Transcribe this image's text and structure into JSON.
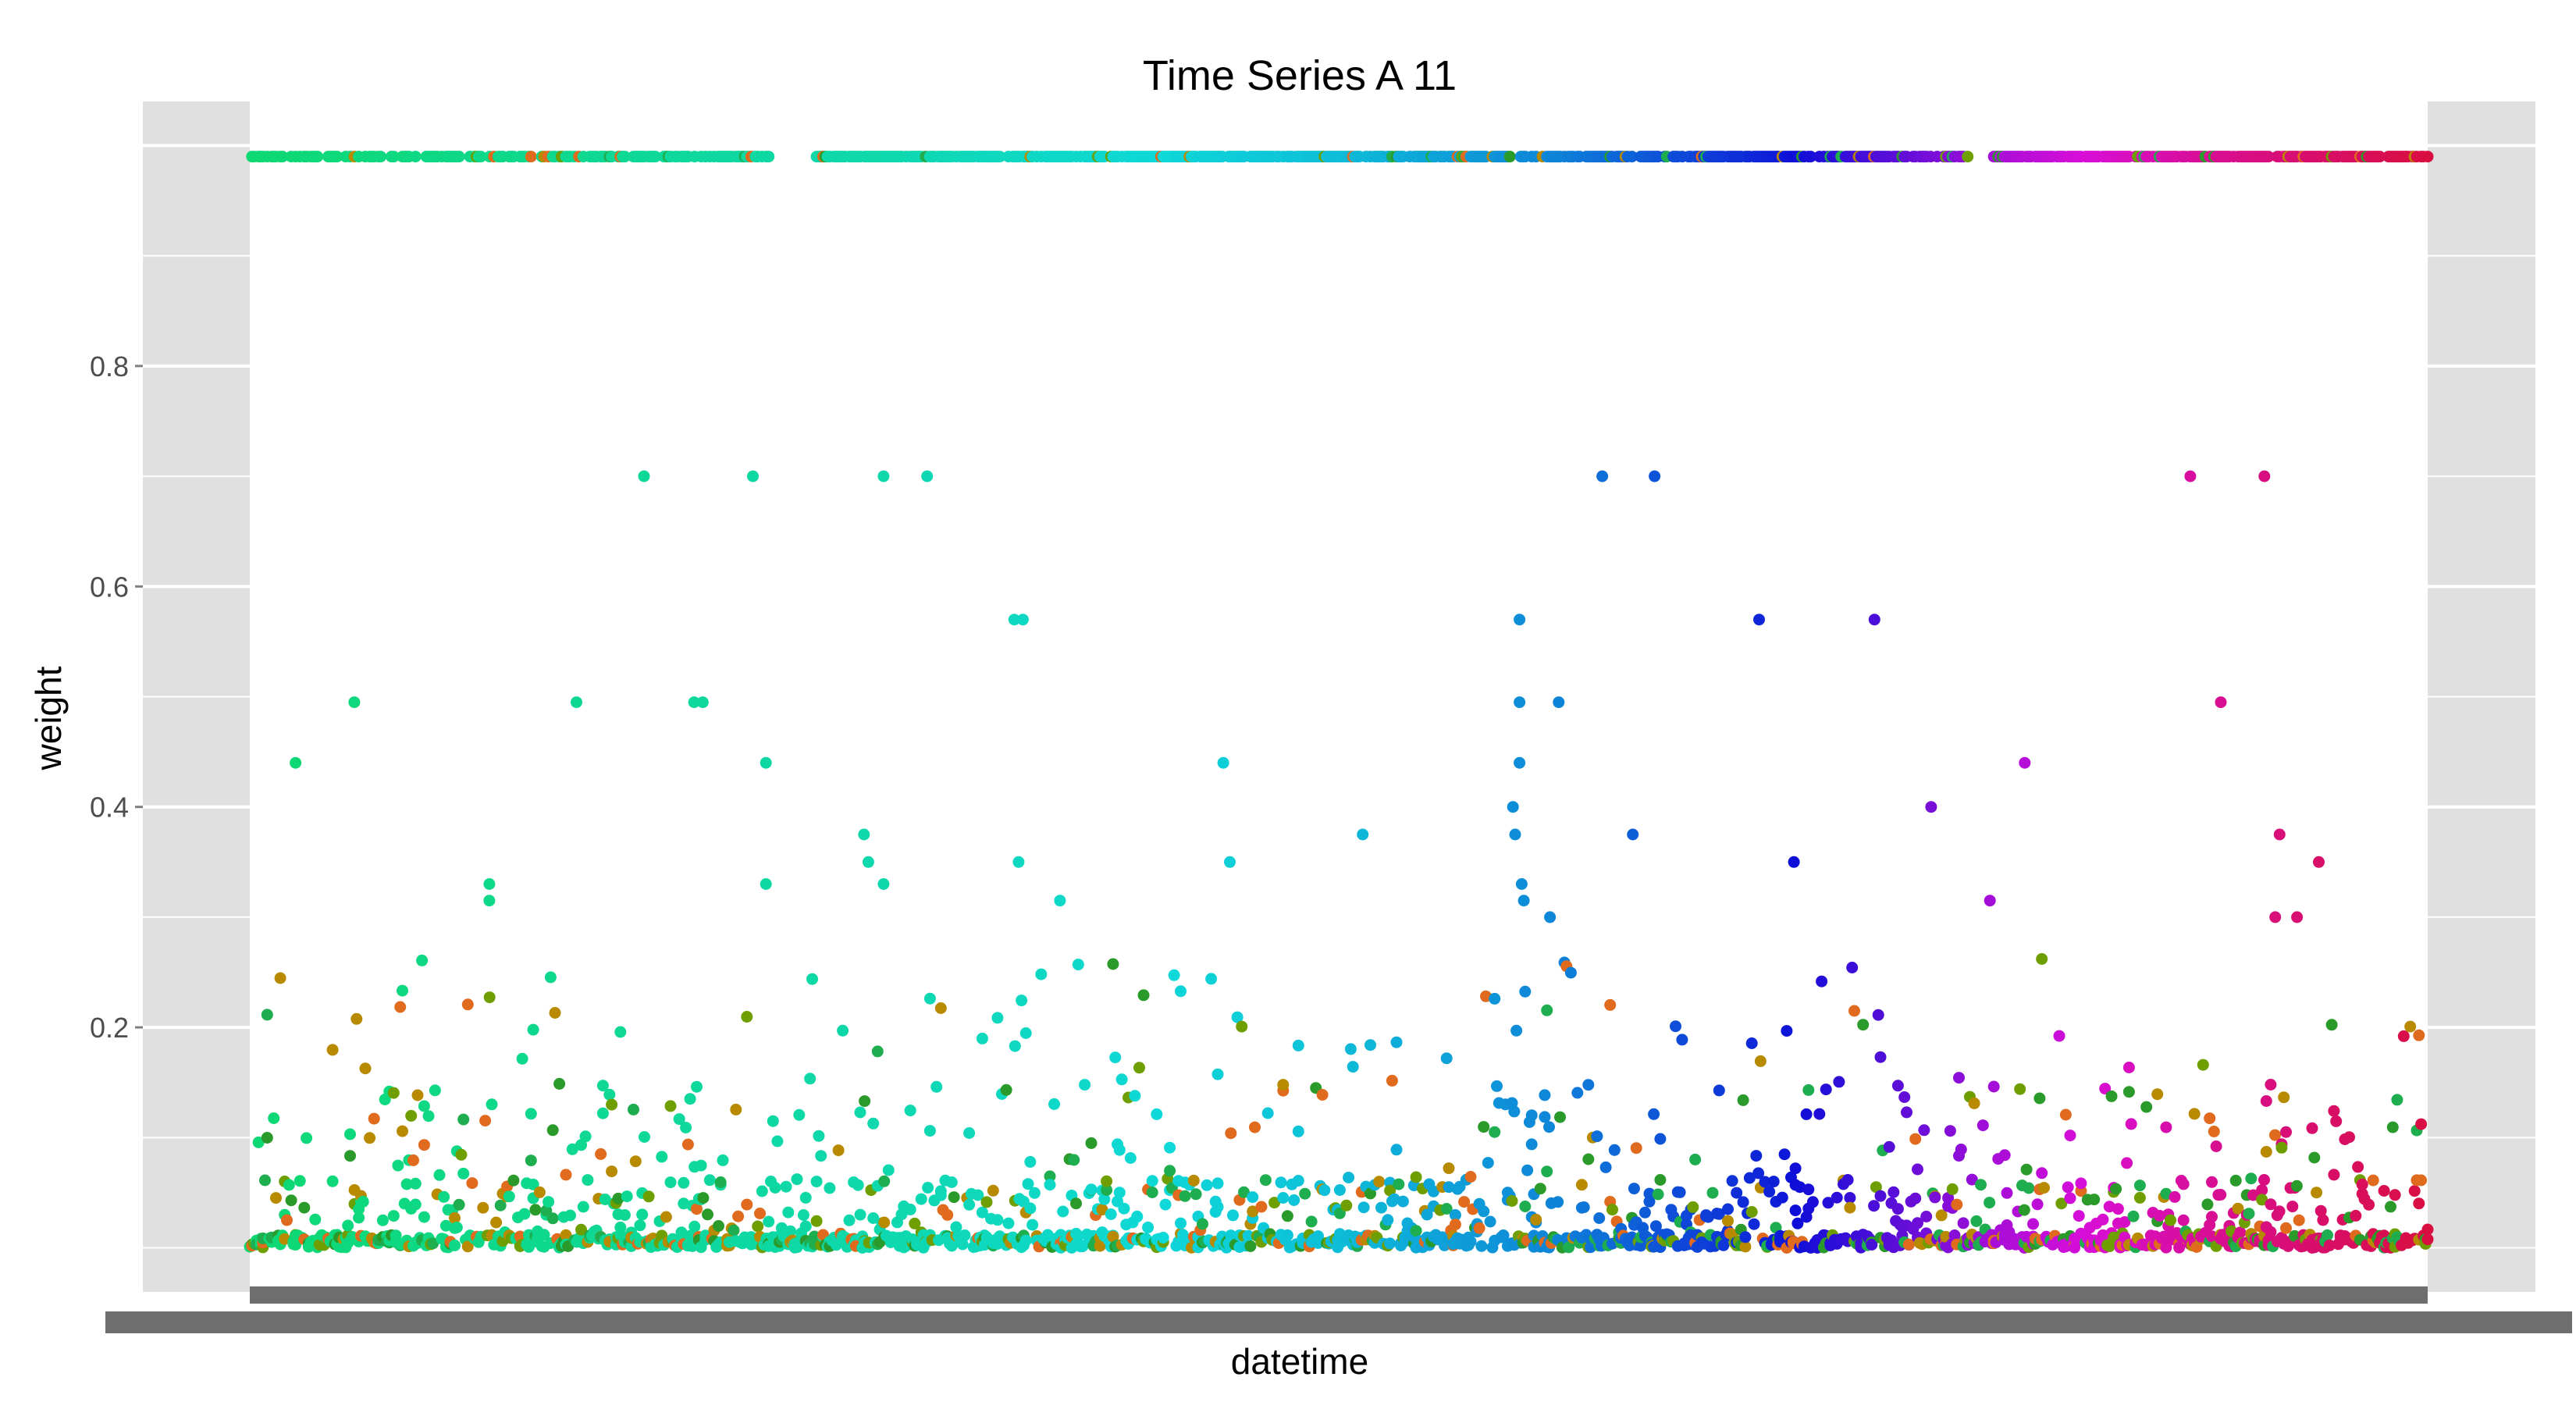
{
  "chart_data": {
    "type": "scatter",
    "title": "Time Series A 11",
    "xlabel": "datetime",
    "ylabel": "weight",
    "ylim": [
      -0.04,
      1.04
    ],
    "y_ticks": [
      "0.2",
      "0.4",
      "0.6",
      "0.8"
    ],
    "x_tick_labels_note": "dense overlapping datetime tick labels, illegible",
    "grid": true,
    "legend": "none",
    "background_color": "#e0e0e0",
    "grid_color": "#ffffff",
    "color_scale": "hue gradient across time (green → teal → blue → purple → pink), plus orange/olive/green points near zero",
    "n_time_points": 1000,
    "series": [
      {
        "values_description": "upper band of points at weight ≈ 0.99",
        "y": 0.99
      },
      {
        "values_description": "isolated mid-range points",
        "points": [
          {
            "x": 0.181,
            "y": 0.7
          },
          {
            "x": 0.231,
            "y": 0.7
          },
          {
            "x": 0.291,
            "y": 0.7
          },
          {
            "x": 0.311,
            "y": 0.7
          },
          {
            "x": 0.621,
            "y": 0.7
          },
          {
            "x": 0.645,
            "y": 0.7
          },
          {
            "x": 0.891,
            "y": 0.7
          },
          {
            "x": 0.925,
            "y": 0.7
          },
          {
            "x": 0.351,
            "y": 0.57
          },
          {
            "x": 0.355,
            "y": 0.57
          },
          {
            "x": 0.583,
            "y": 0.57
          },
          {
            "x": 0.693,
            "y": 0.57
          },
          {
            "x": 0.746,
            "y": 0.57
          },
          {
            "x": 0.048,
            "y": 0.495
          },
          {
            "x": 0.15,
            "y": 0.495
          },
          {
            "x": 0.204,
            "y": 0.495
          },
          {
            "x": 0.208,
            "y": 0.495
          },
          {
            "x": 0.583,
            "y": 0.495
          },
          {
            "x": 0.601,
            "y": 0.495
          },
          {
            "x": 0.905,
            "y": 0.495
          },
          {
            "x": 0.021,
            "y": 0.44
          },
          {
            "x": 0.237,
            "y": 0.44
          },
          {
            "x": 0.447,
            "y": 0.44
          },
          {
            "x": 0.583,
            "y": 0.44
          },
          {
            "x": 0.815,
            "y": 0.44
          },
          {
            "x": 0.58,
            "y": 0.4
          },
          {
            "x": 0.772,
            "y": 0.4
          },
          {
            "x": 0.282,
            "y": 0.375
          },
          {
            "x": 0.511,
            "y": 0.375
          },
          {
            "x": 0.581,
            "y": 0.375
          },
          {
            "x": 0.635,
            "y": 0.375
          },
          {
            "x": 0.932,
            "y": 0.375
          },
          {
            "x": 0.284,
            "y": 0.35
          },
          {
            "x": 0.353,
            "y": 0.35
          },
          {
            "x": 0.45,
            "y": 0.35
          },
          {
            "x": 0.709,
            "y": 0.35
          },
          {
            "x": 0.95,
            "y": 0.35
          },
          {
            "x": 0.11,
            "y": 0.33
          },
          {
            "x": 0.237,
            "y": 0.33
          },
          {
            "x": 0.291,
            "y": 0.33
          },
          {
            "x": 0.584,
            "y": 0.33
          },
          {
            "x": 0.11,
            "y": 0.315
          },
          {
            "x": 0.372,
            "y": 0.315
          },
          {
            "x": 0.585,
            "y": 0.315
          },
          {
            "x": 0.799,
            "y": 0.315
          },
          {
            "x": 0.597,
            "y": 0.3
          },
          {
            "x": 0.93,
            "y": 0.3
          },
          {
            "x": 0.94,
            "y": 0.3
          }
        ]
      },
      {
        "values_description": "dense cloud of points between 0 and about 0.28",
        "y_range": [
          0.0,
          0.28
        ]
      }
    ]
  }
}
